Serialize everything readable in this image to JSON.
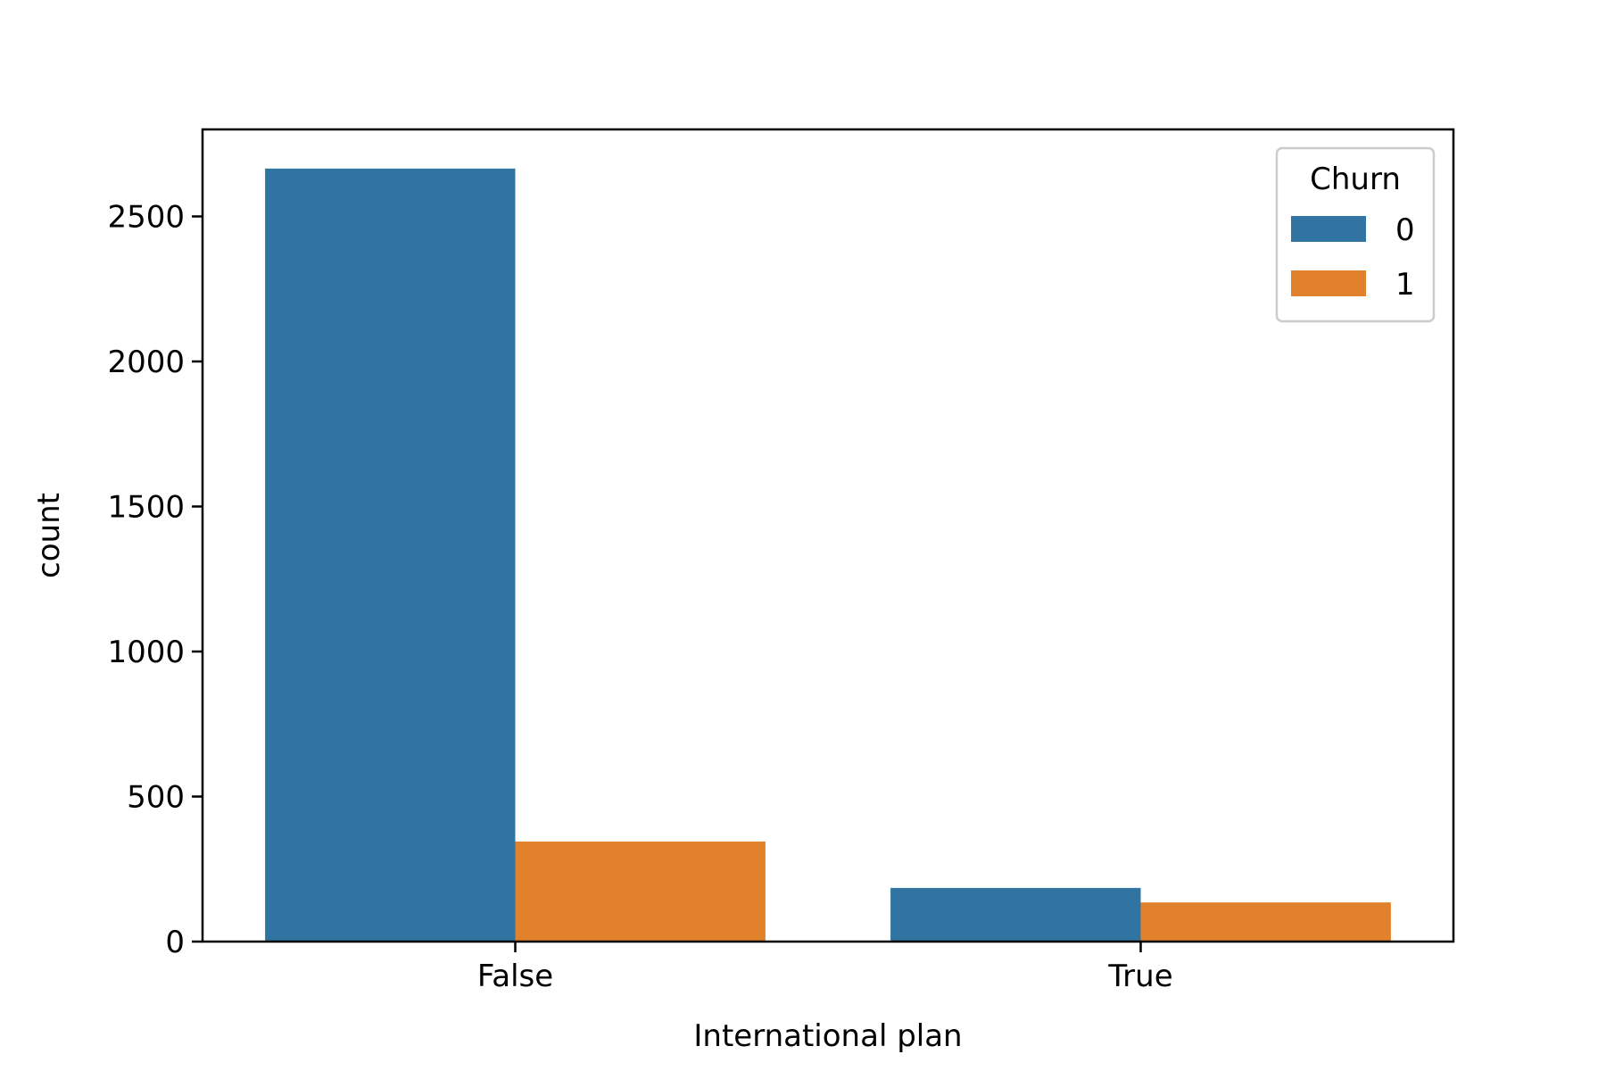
{
  "chart_data": {
    "type": "bar",
    "categories": [
      "False",
      "True"
    ],
    "series": [
      {
        "name": "0",
        "values": [
          2665,
          185
        ],
        "color": "#3274a1"
      },
      {
        "name": "1",
        "values": [
          345,
          135
        ],
        "color": "#e1812c"
      }
    ],
    "title": "",
    "xlabel": "International plan",
    "ylabel": "count",
    "ylim": [
      0,
      2800
    ],
    "yticks": [
      0,
      500,
      1000,
      1500,
      2000,
      2500
    ],
    "grid": false,
    "legend": {
      "title": "Churn",
      "placement": "top-right"
    }
  }
}
